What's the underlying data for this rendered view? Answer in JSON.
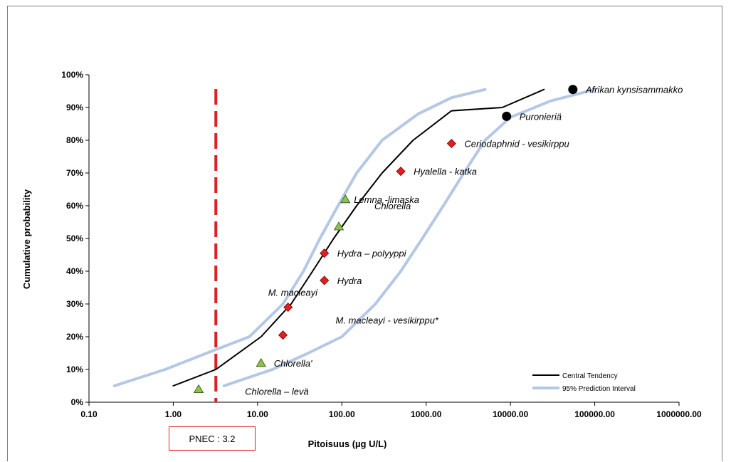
{
  "chart_data": {
    "type": "scatter",
    "xlabel": "Pitoisuus (µg U/L)",
    "ylabel": "Cumulative probability",
    "x_scale": "log",
    "xlim": [
      0.1,
      1000000
    ],
    "ylim": [
      0,
      1
    ],
    "x_ticks": [
      "0.10",
      "1.00",
      "10.00",
      "100.00",
      "1000.00",
      "10000.00",
      "100000.00",
      "1000000.00"
    ],
    "y_ticks": [
      "0%",
      "10%",
      "20%",
      "30%",
      "40%",
      "50%",
      "60%",
      "70%",
      "80%",
      "90%",
      "100%"
    ],
    "grid": false,
    "legend_position": "bottom-right",
    "series": [
      {
        "name": "Central Tendency",
        "kind": "line",
        "color": "#000000",
        "points": [
          [
            1.0,
            0.05
          ],
          [
            3.2,
            0.1
          ],
          [
            11,
            0.2
          ],
          [
            25,
            0.3
          ],
          [
            45,
            0.4
          ],
          [
            80,
            0.5
          ],
          [
            150,
            0.6
          ],
          [
            300,
            0.7
          ],
          [
            700,
            0.8
          ],
          [
            2000,
            0.89
          ],
          [
            8000,
            0.9
          ],
          [
            25000,
            0.955
          ]
        ]
      },
      {
        "name": "95% Prediction Interval",
        "kind": "line",
        "color": "#b4c8e6",
        "points": [
          [
            0.2,
            0.05
          ],
          [
            0.8,
            0.1
          ],
          [
            2.5,
            0.15
          ],
          [
            8,
            0.2
          ],
          [
            20,
            0.3
          ],
          [
            35,
            0.4
          ],
          [
            55,
            0.5
          ],
          [
            90,
            0.6
          ],
          [
            150,
            0.7
          ],
          [
            300,
            0.8
          ],
          [
            800,
            0.88
          ],
          [
            2000,
            0.93
          ],
          [
            5000,
            0.955
          ]
        ]
      },
      {
        "name": "",
        "kind": "line",
        "color": "#b4c8e6",
        "points": [
          [
            4,
            0.05
          ],
          [
            15,
            0.1
          ],
          [
            40,
            0.15
          ],
          [
            100,
            0.2
          ],
          [
            250,
            0.3
          ],
          [
            500,
            0.4
          ],
          [
            900,
            0.5
          ],
          [
            1600,
            0.6
          ],
          [
            2800,
            0.7
          ],
          [
            5000,
            0.8
          ],
          [
            10000,
            0.87
          ],
          [
            30000,
            0.92
          ],
          [
            100000,
            0.955
          ]
        ]
      }
    ],
    "points": [
      {
        "x": 2.0,
        "y": 0.04,
        "marker": "triangle",
        "color": "#8bc34a",
        "label": "Chlorella – levä"
      },
      {
        "x": 11,
        "y": 0.12,
        "marker": "triangle",
        "color": "#8bc34a",
        "label": "Chlorella'"
      },
      {
        "x": 20,
        "y": 0.205,
        "marker": "diamond",
        "color": "#e02020",
        "label": "M. macleayi - vesikirppu*"
      },
      {
        "x": 23,
        "y": 0.29,
        "marker": "diamond",
        "color": "#e02020",
        "label": "M. macleayi"
      },
      {
        "x": 62,
        "y": 0.372,
        "marker": "diamond",
        "color": "#e02020",
        "label": "Hydra"
      },
      {
        "x": 62,
        "y": 0.455,
        "marker": "diamond",
        "color": "#e02020",
        "label": "Hydra – polyyppi"
      },
      {
        "x": 92,
        "y": 0.537,
        "marker": "triangle",
        "color": "#8bc34a",
        "label": "Chlorella"
      },
      {
        "x": 110,
        "y": 0.62,
        "marker": "triangle",
        "color": "#8bc34a",
        "label": "Lemna -limaska"
      },
      {
        "x": 500,
        "y": 0.705,
        "marker": "diamond",
        "color": "#e02020",
        "label": "Hyalella - katka"
      },
      {
        "x": 2000,
        "y": 0.79,
        "marker": "diamond",
        "color": "#e02020",
        "label": "Ceriodaphnid  - vesikirppu"
      },
      {
        "x": 9000,
        "y": 0.873,
        "marker": "circle",
        "color": "#000000",
        "label": "Puronieriä"
      },
      {
        "x": 55000,
        "y": 0.955,
        "marker": "circle",
        "color": "#000000",
        "label": "Afrikan kynsisammakko"
      }
    ],
    "reference_line": {
      "x": 3.2,
      "color": "#e02020",
      "style": "dashed",
      "label": "PNEC : 3.2"
    }
  }
}
